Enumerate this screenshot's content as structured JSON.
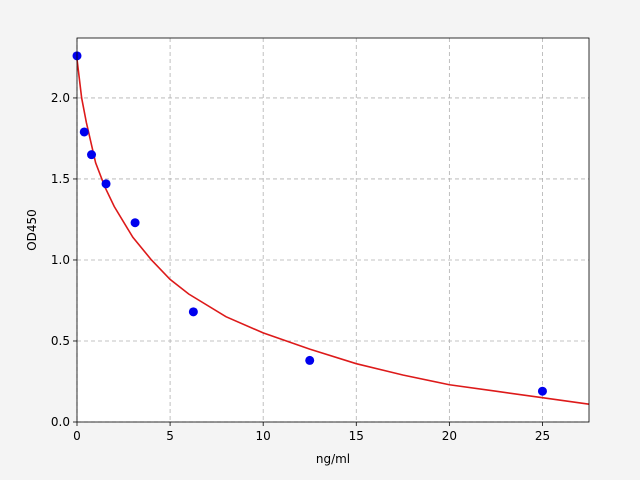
{
  "chart_data": {
    "type": "scatter",
    "xlabel": "ng/ml",
    "ylabel": "OD450",
    "xlim": [
      0,
      27.5
    ],
    "ylim": [
      0,
      2.37
    ],
    "xticks": [
      0,
      5,
      10,
      15,
      20,
      25
    ],
    "yticks": [
      {
        "value": 0,
        "label": "0.0"
      },
      {
        "value": 0.5,
        "label": "0.5"
      },
      {
        "value": 1,
        "label": "1.0"
      },
      {
        "value": 1.5,
        "label": "1.5"
      },
      {
        "value": 2,
        "label": "2.0"
      }
    ],
    "grid": true,
    "series": [
      {
        "type": "scatter",
        "color": "#0000ee",
        "x": [
          0,
          0.39,
          0.78,
          1.56,
          3.12,
          6.25,
          12.5,
          25
        ],
        "values": [
          2.26,
          1.79,
          1.65,
          1.47,
          1.23,
          0.68,
          0.38,
          0.19
        ]
      },
      {
        "type": "line",
        "color": "#dd1a1a",
        "x": [
          0,
          0.25,
          0.5,
          1,
          1.5,
          2,
          3,
          4,
          5,
          6,
          8,
          10,
          12.5,
          15,
          17.5,
          20,
          22.5,
          25,
          27.5
        ],
        "values": [
          2.24,
          2.0,
          1.85,
          1.6,
          1.45,
          1.33,
          1.14,
          1.0,
          0.88,
          0.79,
          0.65,
          0.55,
          0.45,
          0.36,
          0.29,
          0.23,
          0.19,
          0.15,
          0.11
        ]
      }
    ]
  }
}
